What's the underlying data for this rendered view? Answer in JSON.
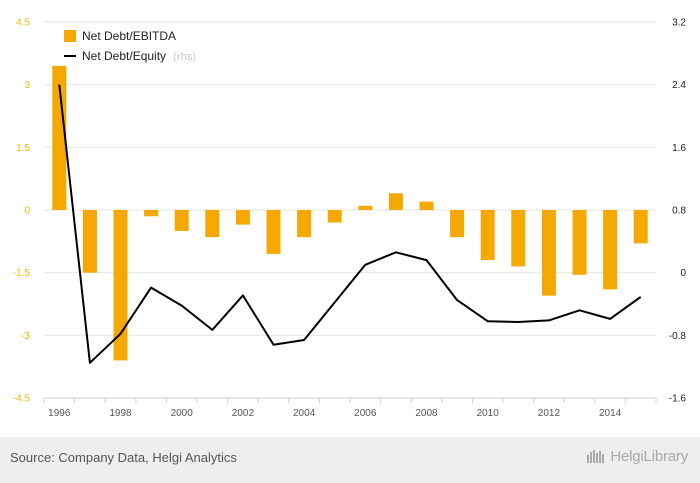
{
  "source_text": "Source: Company Data, Helgi Analytics",
  "brand": {
    "name": "HelgiLibrary",
    "icon": "helgi-library-icon"
  },
  "colors": {
    "bar": "#f5a800",
    "line": "#000000",
    "left_axis": "#f5b800",
    "grid": "#e6e6e6"
  },
  "chart_data": {
    "type": "bar",
    "x": [
      1996,
      1997,
      1998,
      1999,
      2000,
      2001,
      2002,
      2003,
      2004,
      2005,
      2006,
      2007,
      2008,
      2009,
      2010,
      2011,
      2012,
      2013,
      2014,
      2015
    ],
    "x_tick_labels": [
      "1996",
      "1998",
      "2000",
      "2002",
      "2004",
      "2006",
      "2008",
      "2010",
      "2012",
      "2014"
    ],
    "y_left": {
      "ticks": [
        "4.5",
        "3",
        "1.5",
        "0",
        "-1.5",
        "-3",
        "-4.5"
      ],
      "range": [
        -4.5,
        4.5
      ]
    },
    "y_right": {
      "ticks": [
        "3.2",
        "2.4",
        "1.6",
        "0.8",
        "0",
        "-0.8",
        "-1.6"
      ],
      "range": [
        -1.6,
        3.2
      ]
    },
    "series": [
      {
        "name": "Net Debt/EBITDA",
        "kind": "bar",
        "axis": "left",
        "values": [
          3.45,
          -1.5,
          -3.6,
          -0.15,
          -0.5,
          -0.65,
          -0.35,
          -1.05,
          -0.65,
          -0.3,
          0.1,
          0.4,
          0.2,
          -0.65,
          -1.2,
          -1.35,
          -2.05,
          -1.55,
          -1.9,
          -0.8
        ]
      },
      {
        "name": "Net Debt/Equity",
        "name_suffix": "(rhs)",
        "kind": "line",
        "axis": "right",
        "values": [
          2.4,
          -1.15,
          -0.78,
          -0.19,
          -0.42,
          -0.73,
          -0.29,
          -0.92,
          -0.86,
          -0.38,
          0.1,
          0.26,
          0.16,
          -0.35,
          -0.62,
          -0.63,
          -0.61,
          -0.48,
          -0.59,
          -0.31
        ]
      }
    ],
    "grid": true,
    "legend_position": "top-left"
  }
}
